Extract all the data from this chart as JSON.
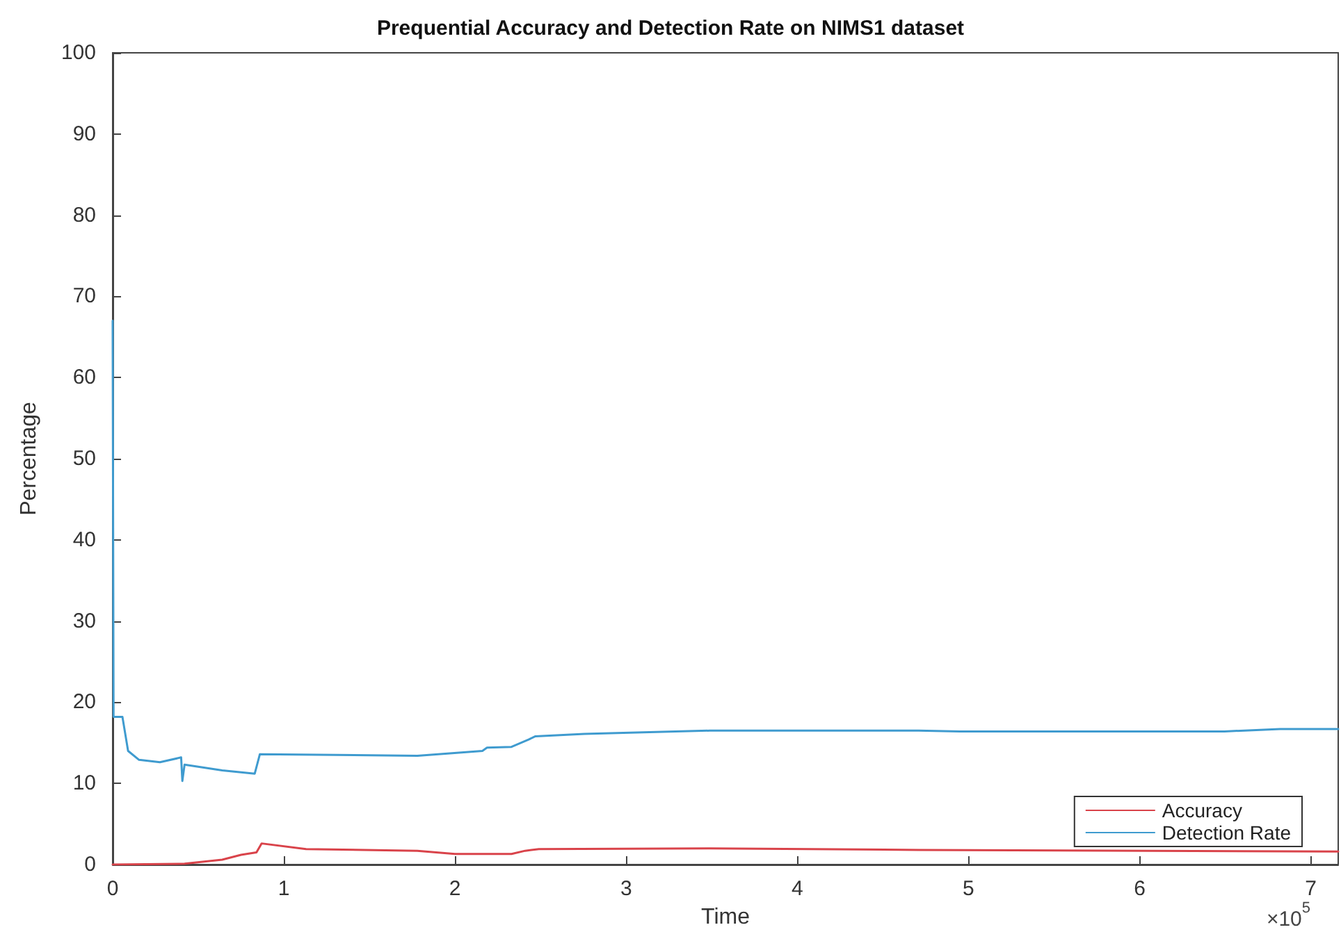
{
  "chart_data": {
    "type": "line",
    "title": "Prequential Accuracy and Detection Rate on NIMS1 dataset",
    "xlabel": "Time",
    "ylabel": "Percentage",
    "annotations": [
      "×10$^{5}$"
    ],
    "xlim": [
      0,
      7.16
    ],
    "ylim": [
      0,
      100
    ],
    "xticks": [
      0,
      1,
      2,
      3,
      4,
      5,
      6,
      7
    ],
    "yticks": [
      0,
      10,
      20,
      30,
      40,
      50,
      60,
      70,
      80,
      90,
      100
    ],
    "grid": false,
    "legend": "bottom right",
    "marker": "none",
    "line_style": "solid",
    "series": [
      {
        "name": "Accuracy",
        "color": "#d9434a",
        "x": [
          0,
          0.42,
          0.64,
          0.75,
          0.84,
          0.87,
          1.13,
          1.78,
          2.0,
          2.33,
          2.41,
          2.49,
          3.49,
          4.71,
          7.16
        ],
        "values": [
          0,
          0.1,
          0.6,
          1.2,
          1.5,
          2.6,
          1.9,
          1.7,
          1.3,
          1.3,
          1.7,
          1.9,
          2.0,
          1.8,
          1.6
        ]
      },
      {
        "name": "Detection Rate",
        "color": "#3f9bcf",
        "x": [
          0,
          0.005,
          0.057,
          0.09,
          0.154,
          0.276,
          0.4,
          0.407,
          0.42,
          0.64,
          0.83,
          0.86,
          1.78,
          2.16,
          2.187,
          2.33,
          2.43,
          2.47,
          2.756,
          3.488,
          4.707,
          4.95,
          6.496,
          6.82,
          7.16
        ],
        "values": [
          67,
          18.2,
          18.2,
          14.0,
          12.9,
          12.6,
          13.2,
          10.3,
          12.3,
          11.6,
          11.2,
          13.6,
          13.4,
          14.0,
          14.4,
          14.5,
          15.4,
          15.8,
          16.1,
          16.5,
          16.5,
          16.4,
          16.4,
          16.7,
          16.7
        ]
      }
    ]
  }
}
